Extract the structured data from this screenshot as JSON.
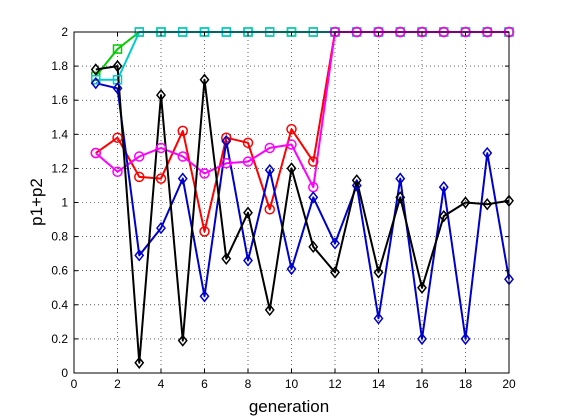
{
  "chart_data": {
    "type": "line",
    "title": "",
    "xlabel": "generation",
    "ylabel": "p1+p2",
    "xlim": [
      0,
      20
    ],
    "ylim": [
      0,
      2
    ],
    "xticks": [
      0,
      2,
      4,
      6,
      8,
      10,
      12,
      14,
      16,
      18,
      20
    ],
    "yticks": [
      0,
      0.2,
      0.4,
      0.6,
      0.8,
      1,
      1.2,
      1.4,
      1.6,
      1.8,
      2
    ],
    "xtick_labels": [
      "0",
      "2",
      "4",
      "6",
      "8",
      "10",
      "12",
      "14",
      "16",
      "18",
      "20"
    ],
    "ytick_labels": [
      "0",
      "0.2",
      "0.4",
      "0.6",
      "0.8",
      "1",
      "1.2",
      "1.4",
      "1.6",
      "1.8",
      "2"
    ],
    "grid": true,
    "x": [
      1,
      2,
      3,
      4,
      5,
      6,
      7,
      8,
      9,
      10,
      11,
      12,
      13,
      14,
      15,
      16,
      17,
      18,
      19,
      20
    ],
    "series": [
      {
        "color": "#00cc00",
        "marker": "square",
        "values": [
          1.74,
          1.9,
          2,
          2,
          2,
          2,
          2,
          2,
          2,
          2,
          2,
          2,
          2,
          2,
          2,
          2,
          2,
          2,
          2,
          2
        ]
      },
      {
        "color": "#00cccc",
        "marker": "square",
        "values": [
          1.72,
          1.72,
          2,
          2,
          2,
          2,
          2,
          2,
          2,
          2,
          2,
          2,
          2,
          2,
          2,
          2,
          2,
          2,
          2,
          2
        ]
      },
      {
        "color": "#ff0000",
        "marker": "circle",
        "values": [
          1.29,
          1.38,
          1.15,
          1.14,
          1.42,
          0.83,
          1.38,
          1.35,
          0.96,
          1.43,
          1.24,
          2,
          2,
          2,
          2,
          2,
          2,
          2,
          2,
          2
        ]
      },
      {
        "color": "#ff00ff",
        "marker": "circle",
        "values": [
          1.29,
          1.18,
          1.27,
          1.32,
          1.27,
          1.17,
          1.23,
          1.24,
          1.32,
          1.34,
          1.09,
          2,
          2,
          2,
          2,
          2,
          2,
          2,
          2,
          2
        ]
      },
      {
        "color": "#0000cc",
        "marker": "diamond",
        "values": [
          1.7,
          1.67,
          0.69,
          0.85,
          1.14,
          0.45,
          1.36,
          0.66,
          1.19,
          0.61,
          1.03,
          0.76,
          1.1,
          0.32,
          1.14,
          0.2,
          1.09,
          0.2,
          1.29,
          0.55
        ]
      },
      {
        "color": "#000000",
        "marker": "diamond",
        "values": [
          1.78,
          1.8,
          0.06,
          1.63,
          0.19,
          1.72,
          0.67,
          0.94,
          0.37,
          1.2,
          0.74,
          0.59,
          1.13,
          0.59,
          1.03,
          0.5,
          0.92,
          1.0,
          0.99,
          1.01
        ]
      }
    ]
  }
}
